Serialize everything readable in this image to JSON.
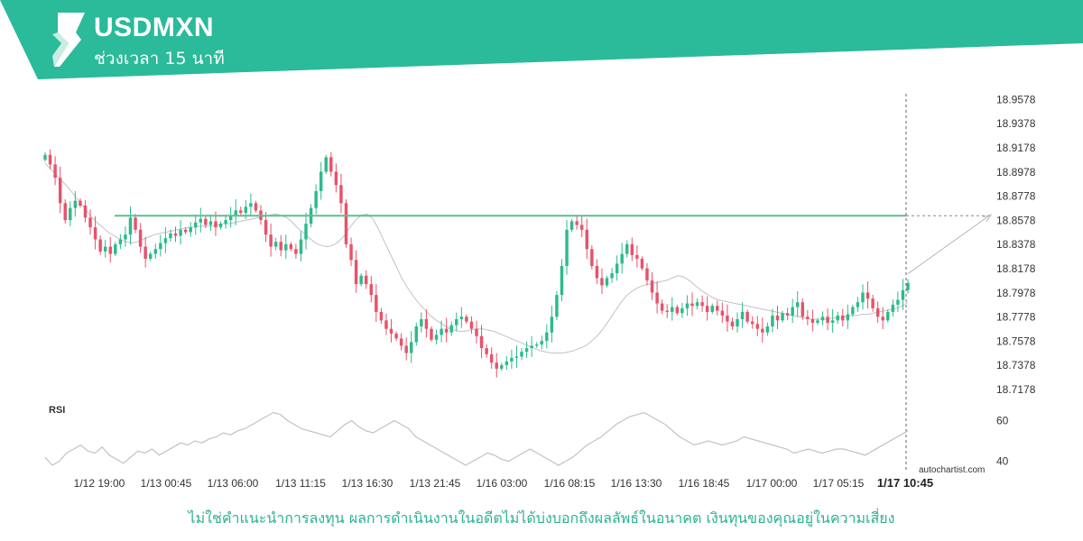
{
  "header": {
    "symbol": "USDMXN",
    "interval_text": "ช่วงเวลา 15 นาที",
    "colors": {
      "banner": "#2bba9a",
      "logo_light": "#c8eee2"
    },
    "logo_icon": "autochartist-logo-icon"
  },
  "chart_data": {
    "type": "candlestick",
    "symbol": "USDMXN",
    "y_ticks": [
      18.9578,
      18.9378,
      18.9178,
      18.8978,
      18.8778,
      18.8578,
      18.8378,
      18.8178,
      18.7978,
      18.7778,
      18.7578,
      18.7378,
      18.7178
    ],
    "ylim": [
      18.7118,
      18.9618
    ],
    "x_ticks": [
      "1/12 19:00",
      "1/13 00:45",
      "1/13 06:00",
      "1/13 11:15",
      "1/13 16:30",
      "1/13 21:45",
      "1/16 03:00",
      "1/16 08:15",
      "1/16 13:30",
      "1/16 18:45",
      "1/17 00:00",
      "1/17 05:15",
      "1/17 10:45"
    ],
    "current_time_label": "1/17 10:45",
    "grid": false,
    "resistance_level": 18.8616,
    "projection": {
      "from": 18.8136,
      "to": 18.8616
    },
    "close_series": [
      18.912,
      18.904,
      18.893,
      18.872,
      18.858,
      18.868,
      18.874,
      18.87,
      18.86,
      18.852,
      18.842,
      18.832,
      18.836,
      18.83,
      18.838,
      18.842,
      18.846,
      18.86,
      18.85,
      18.836,
      18.826,
      18.83,
      18.834,
      18.839,
      18.843,
      18.847,
      18.845,
      18.85,
      18.848,
      18.852,
      18.856,
      18.859,
      18.854,
      18.857,
      18.852,
      18.855,
      18.858,
      18.862,
      18.866,
      18.864,
      18.869,
      18.872,
      18.866,
      18.858,
      18.846,
      18.836,
      18.84,
      18.833,
      18.838,
      18.834,
      18.83,
      18.842,
      18.855,
      18.868,
      18.882,
      18.898,
      18.91,
      18.898,
      18.887,
      18.872,
      18.838,
      18.825,
      18.805,
      18.812,
      18.805,
      18.796,
      18.782,
      18.775,
      18.768,
      18.764,
      18.76,
      18.754,
      18.748,
      18.757,
      18.77,
      18.776,
      18.768,
      18.759,
      18.763,
      18.768,
      18.765,
      18.771,
      18.776,
      18.778,
      18.774,
      18.768,
      18.762,
      18.752,
      18.747,
      18.74,
      18.735,
      18.738,
      18.741,
      18.744,
      18.745,
      18.749,
      18.752,
      18.754,
      18.755,
      18.758,
      18.765,
      18.778,
      18.796,
      18.82,
      18.85,
      18.857,
      18.854,
      18.85,
      18.834,
      18.82,
      18.81,
      18.804,
      18.81,
      18.814,
      18.822,
      18.83,
      18.838,
      18.829,
      18.826,
      18.818,
      18.808,
      18.798,
      18.789,
      18.783,
      18.782,
      18.786,
      18.781,
      18.785,
      18.789,
      18.787,
      18.79,
      18.787,
      18.782,
      18.787,
      18.783,
      18.779,
      18.774,
      18.77,
      18.776,
      18.782,
      18.774,
      18.772,
      18.768,
      18.765,
      18.77,
      18.779,
      18.775,
      18.781,
      18.779,
      18.786,
      18.79,
      18.778,
      18.776,
      18.773,
      18.775,
      18.778,
      18.773,
      18.775,
      18.779,
      18.775,
      18.78,
      18.786,
      18.79,
      18.798,
      18.793,
      18.785,
      18.778,
      18.775,
      18.782,
      18.788,
      18.792,
      18.8,
      18.806
    ],
    "moving_average_series": [
      18.905,
      18.9,
      18.895,
      18.89,
      18.885,
      18.879,
      18.873,
      18.867,
      18.861,
      18.856,
      18.852,
      18.848,
      18.845,
      18.842,
      18.84,
      18.839,
      18.84,
      18.842,
      18.844,
      18.846,
      18.847,
      18.848,
      18.849,
      18.85,
      18.851,
      18.852,
      18.852,
      18.853,
      18.853,
      18.853,
      18.854,
      18.855,
      18.855,
      18.856,
      18.857,
      18.858,
      18.859,
      18.86,
      18.861,
      18.862,
      18.863,
      18.862,
      18.86,
      18.856,
      18.851,
      18.847,
      18.843,
      18.839,
      18.837,
      18.836,
      18.837,
      18.84,
      18.845,
      18.852,
      18.858,
      18.862,
      18.863,
      18.859,
      18.85,
      18.84,
      18.83,
      18.82,
      18.81,
      18.802,
      18.795,
      18.789,
      18.784,
      18.779,
      18.775,
      18.772,
      18.769,
      18.767,
      18.766,
      18.766,
      18.767,
      18.768,
      18.768,
      18.767,
      18.766,
      18.764,
      18.762,
      18.76,
      18.758,
      18.756,
      18.754,
      18.752,
      18.75,
      18.749,
      18.748,
      18.748,
      18.748,
      18.749,
      18.75,
      18.752,
      18.754,
      18.758,
      18.762,
      18.768,
      18.775,
      18.782,
      18.789,
      18.795,
      18.799,
      18.802,
      18.804,
      18.805,
      18.806,
      18.807,
      18.808,
      18.81,
      18.812,
      18.811,
      18.808,
      18.804,
      18.8,
      18.797,
      18.794,
      18.792,
      18.791,
      18.79,
      18.789,
      18.788,
      18.787,
      18.786,
      18.785,
      18.784,
      18.783,
      18.782,
      18.781,
      18.78,
      18.779,
      18.778,
      18.777,
      18.776,
      18.776,
      18.776,
      18.776,
      18.777,
      18.777,
      18.778,
      18.779,
      18.779,
      18.78,
      18.78,
      18.781,
      18.782,
      18.783,
      18.784,
      18.785,
      18.787,
      18.79
    ],
    "rsi": {
      "label": "RSI",
      "levels": [
        60,
        40
      ],
      "ylim": [
        30,
        70
      ],
      "values": [
        42,
        38,
        40,
        44,
        46,
        48,
        45,
        44,
        47,
        43,
        41,
        39,
        42,
        45,
        44,
        46,
        43,
        45,
        47,
        49,
        48,
        50,
        49,
        51,
        52,
        54,
        53,
        55,
        56,
        58,
        60,
        62,
        64,
        63,
        60,
        58,
        56,
        55,
        54,
        53,
        52,
        55,
        58,
        60,
        57,
        55,
        54,
        56,
        58,
        60,
        58,
        56,
        52,
        50,
        48,
        46,
        44,
        42,
        40,
        38,
        40,
        42,
        44,
        43,
        41,
        40,
        42,
        44,
        46,
        44,
        42,
        40,
        38,
        40,
        42,
        45,
        48,
        50,
        52,
        55,
        58,
        60,
        62,
        63,
        64,
        62,
        60,
        58,
        55,
        52,
        50,
        48,
        49,
        50,
        49,
        48,
        49,
        50,
        52,
        51,
        50,
        49,
        48,
        47,
        46,
        44,
        45,
        46,
        45,
        44,
        45,
        46,
        46,
        45,
        44,
        43,
        45,
        47,
        49,
        51,
        53,
        55
      ]
    }
  },
  "branding": "autochartist.com",
  "disclaimer": "ไม่ใช่คำแนะนำการลงทุน ผลการดำเนินงานในอดีตไม่ได้บ่งบอกถึงผลลัพธ์ในอนาคต เงินทุนของคุณอยู่ในความเสี่ยง"
}
